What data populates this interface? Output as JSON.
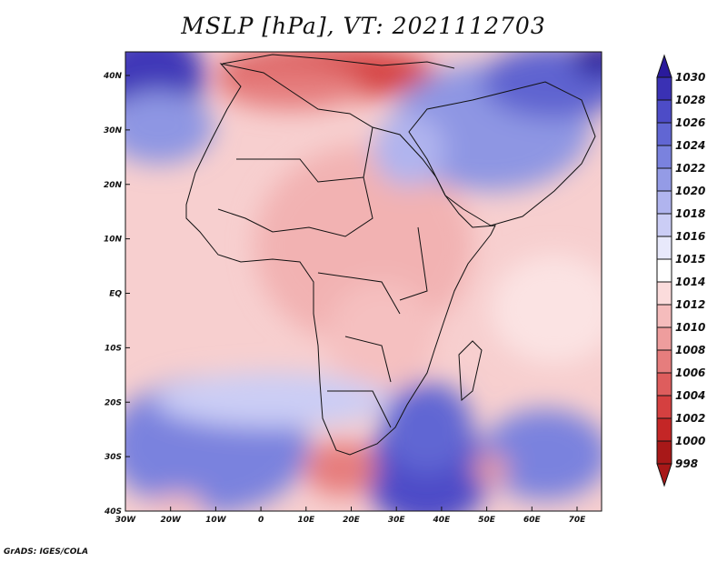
{
  "title": "MSLP [hPa], VT: 2021112703",
  "credit": "GrADS: IGES/COLA",
  "map": {
    "lat_labels": [
      "40N",
      "30N",
      "20N",
      "10N",
      "EQ",
      "10S",
      "20S",
      "30S",
      "40S"
    ],
    "lon_labels": [
      "30W",
      "20W",
      "10W",
      "0",
      "10E",
      "20E",
      "30E",
      "40E",
      "50E",
      "60E",
      "70E"
    ]
  },
  "colorbar": {
    "levels": [
      "1030",
      "1028",
      "1026",
      "1024",
      "1022",
      "1020",
      "1018",
      "1016",
      "1015",
      "1014",
      "1012",
      "1010",
      "1008",
      "1006",
      "1004",
      "1002",
      "1000",
      "998"
    ],
    "colors": [
      "#2a1a9c",
      "#3a31b4",
      "#4d4cc7",
      "#6166d3",
      "#7a82de",
      "#949be6",
      "#b0b4ee",
      "#cbcdf5",
      "#e8e9fb",
      "#ffffff",
      "#fbdcdc",
      "#f5bcbc",
      "#ee9d9d",
      "#e67d7d",
      "#de5d5d",
      "#d54040",
      "#c42626",
      "#a81818"
    ]
  }
}
